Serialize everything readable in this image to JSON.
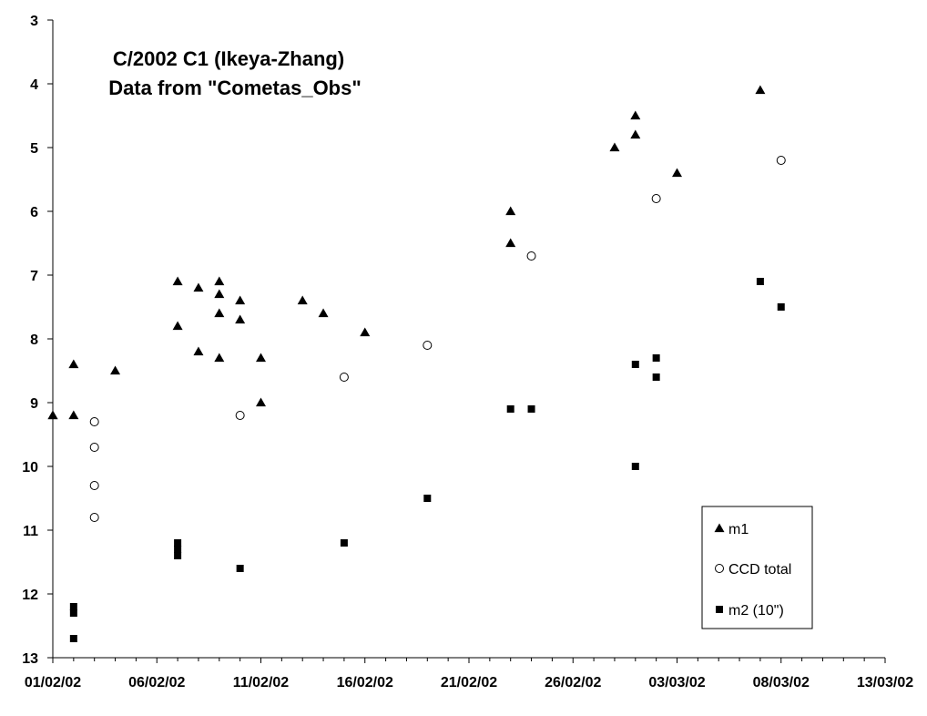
{
  "chart_data": {
    "type": "scatter",
    "title": [
      "C/2002 C1 (Ikeya-Zhang)",
      "Data from \"Cometas_Obs\""
    ],
    "xlabel": "",
    "ylabel": "",
    "x_type": "date",
    "x_tick_labels": [
      "01/02/02",
      "06/02/02",
      "11/02/02",
      "16/02/02",
      "21/02/02",
      "26/02/02",
      "03/03/02",
      "08/03/02",
      "13/03/02"
    ],
    "xlim": [
      "2002-02-01",
      "2002-03-13"
    ],
    "y_reversed": true,
    "ylim": [
      3,
      13
    ],
    "y_ticks": [
      3,
      4,
      5,
      6,
      7,
      8,
      9,
      10,
      11,
      12,
      13
    ],
    "grid": false,
    "legend_position": "bottom-right",
    "series": [
      {
        "name": "m1",
        "marker": "triangle",
        "points": [
          {
            "x": "2002-02-01",
            "y": 9.2
          },
          {
            "x": "2002-02-01",
            "y": 9.2
          },
          {
            "x": "2002-02-02",
            "y": 9.2
          },
          {
            "x": "2002-02-02",
            "y": 8.4
          },
          {
            "x": "2002-02-04",
            "y": 8.5
          },
          {
            "x": "2002-02-07",
            "y": 7.1
          },
          {
            "x": "2002-02-07",
            "y": 7.8
          },
          {
            "x": "2002-02-08",
            "y": 7.2
          },
          {
            "x": "2002-02-08",
            "y": 8.2
          },
          {
            "x": "2002-02-09",
            "y": 7.1
          },
          {
            "x": "2002-02-09",
            "y": 7.3
          },
          {
            "x": "2002-02-09",
            "y": 7.6
          },
          {
            "x": "2002-02-09",
            "y": 8.3
          },
          {
            "x": "2002-02-10",
            "y": 7.4
          },
          {
            "x": "2002-02-10",
            "y": 7.7
          },
          {
            "x": "2002-02-11",
            "y": 8.3
          },
          {
            "x": "2002-02-11",
            "y": 9.0
          },
          {
            "x": "2002-02-13",
            "y": 7.4
          },
          {
            "x": "2002-02-14",
            "y": 7.6
          },
          {
            "x": "2002-02-16",
            "y": 7.9
          },
          {
            "x": "2002-02-23",
            "y": 6.0
          },
          {
            "x": "2002-02-23",
            "y": 6.5
          },
          {
            "x": "2002-02-28",
            "y": 5.0
          },
          {
            "x": "2002-03-01",
            "y": 4.5
          },
          {
            "x": "2002-03-01",
            "y": 4.8
          },
          {
            "x": "2002-03-03",
            "y": 5.4
          },
          {
            "x": "2002-03-07",
            "y": 4.1
          }
        ]
      },
      {
        "name": "CCD total",
        "marker": "circle-open",
        "points": [
          {
            "x": "2002-02-03",
            "y": 9.3
          },
          {
            "x": "2002-02-03",
            "y": 9.7
          },
          {
            "x": "2002-02-03",
            "y": 10.3
          },
          {
            "x": "2002-02-03",
            "y": 10.8
          },
          {
            "x": "2002-02-10",
            "y": 9.2
          },
          {
            "x": "2002-02-15",
            "y": 8.6
          },
          {
            "x": "2002-02-19",
            "y": 8.1
          },
          {
            "x": "2002-02-24",
            "y": 6.7
          },
          {
            "x": "2002-03-02",
            "y": 5.8
          },
          {
            "x": "2002-03-08",
            "y": 5.2
          }
        ]
      },
      {
        "name": "m2 (10\")",
        "marker": "square",
        "points": [
          {
            "x": "2002-02-02",
            "y": 12.2
          },
          {
            "x": "2002-02-02",
            "y": 12.3
          },
          {
            "x": "2002-02-02",
            "y": 12.7
          },
          {
            "x": "2002-02-07",
            "y": 11.2
          },
          {
            "x": "2002-02-07",
            "y": 11.3
          },
          {
            "x": "2002-02-07",
            "y": 11.4
          },
          {
            "x": "2002-02-10",
            "y": 11.6
          },
          {
            "x": "2002-02-15",
            "y": 11.2
          },
          {
            "x": "2002-02-19",
            "y": 10.5
          },
          {
            "x": "2002-02-23",
            "y": 9.1
          },
          {
            "x": "2002-02-24",
            "y": 9.1
          },
          {
            "x": "2002-03-01",
            "y": 8.4
          },
          {
            "x": "2002-03-01",
            "y": 10.0
          },
          {
            "x": "2002-03-02",
            "y": 8.3
          },
          {
            "x": "2002-03-02",
            "y": 8.6
          },
          {
            "x": "2002-03-07",
            "y": 7.1
          },
          {
            "x": "2002-03-08",
            "y": 7.5
          }
        ]
      }
    ]
  }
}
